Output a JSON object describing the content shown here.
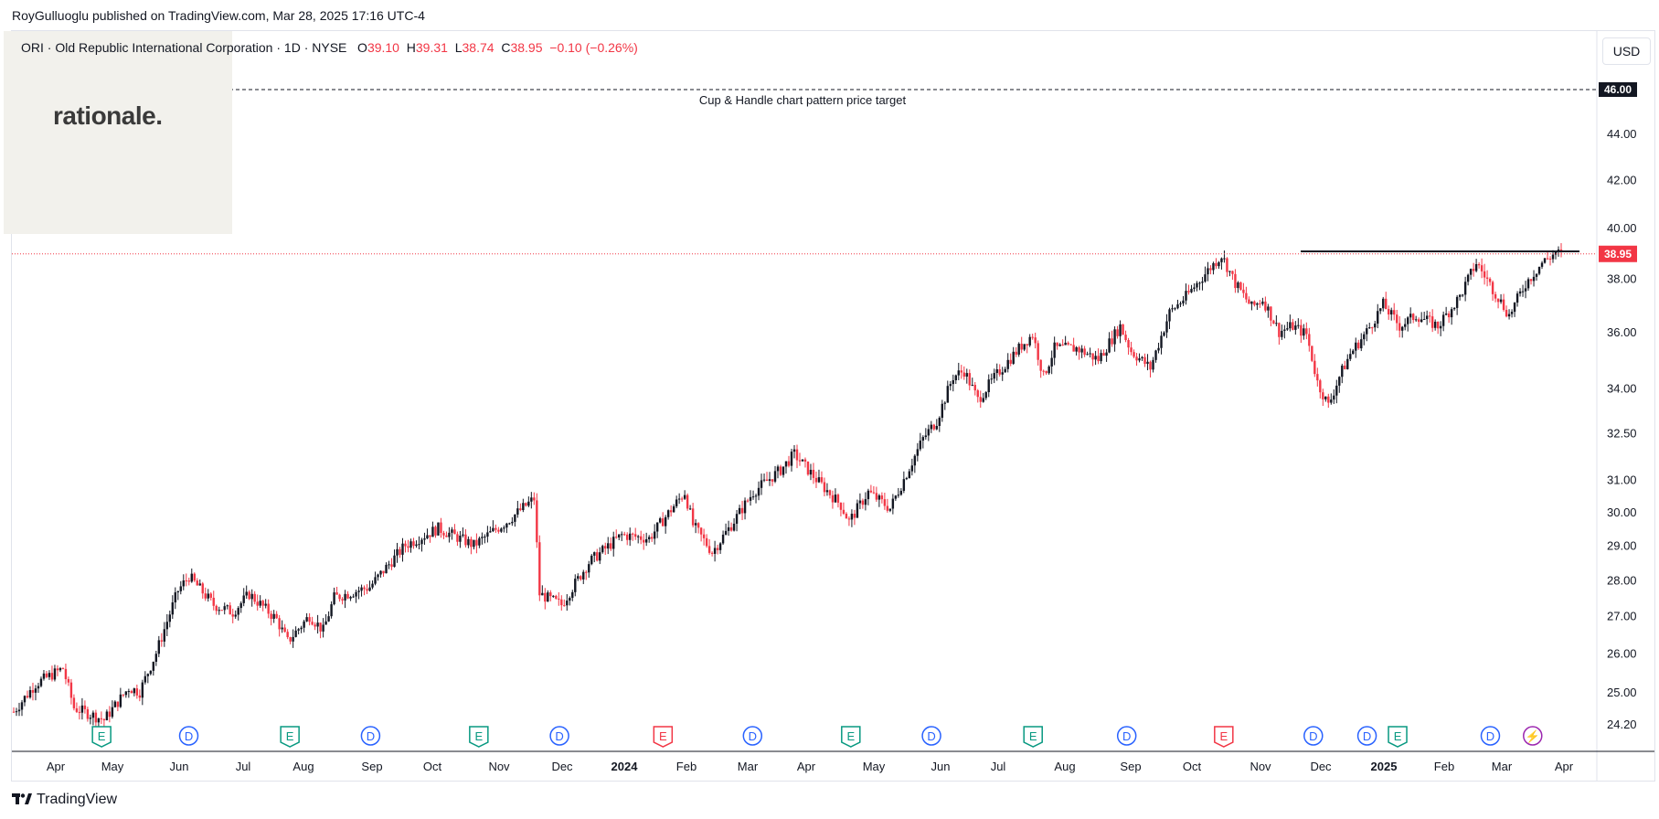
{
  "header": {
    "published": "RoyGulluoglu published on TradingView.com, Mar 28, 2025 17:16 UTC-4"
  },
  "watermark": "rationale.",
  "legend": {
    "symbol": "ORI · Old Republic International Corporation · 1D · NYSE",
    "o_label": "O",
    "o_value": "39.10",
    "h_label": "H",
    "h_value": "39.31",
    "l_label": "L",
    "l_value": "38.74",
    "c_label": "C",
    "c_value": "38.95",
    "change": "−0.10 (−0.26%)"
  },
  "currency": "USD",
  "footer": {
    "brand": "TradingView",
    "icon": "tradingview-logo-icon"
  },
  "colors": {
    "up": "#131722",
    "down": "#f23645",
    "grid": "#e0e3eb",
    "earnings_green": "#089981",
    "earnings_red": "#f23645",
    "dividend": "#2962ff",
    "event_purple": "#9c27b0"
  },
  "chart_data": {
    "type": "candlestick",
    "scale": "log",
    "ylim": [
      23.5,
      47.5
    ],
    "y_ticks": [
      "46.00",
      "44.00",
      "42.00",
      "40.00",
      "38.00",
      "36.00",
      "34.00",
      "32.50",
      "31.00",
      "30.00",
      "29.00",
      "28.00",
      "27.00",
      "26.00",
      "25.00",
      "24.20"
    ],
    "x_ticks": [
      "Apr",
      "May",
      "Jun",
      "Jul",
      "Aug",
      "Sep",
      "Oct",
      "Nov",
      "Dec",
      "2024",
      "Feb",
      "Mar",
      "Apr",
      "May",
      "Jun",
      "Jul",
      "Aug",
      "Sep",
      "Oct",
      "Nov",
      "Dec",
      "2025",
      "Feb",
      "Mar",
      "Apr"
    ],
    "x_ticks_bold": [
      "2024",
      "2025"
    ],
    "last_price": "38.95",
    "target_price": "46.00",
    "target_label": "Cup & Handle chart pattern price target",
    "resistance_level": 39.05,
    "price_path": [
      [
        0,
        24.5
      ],
      [
        8,
        25.2
      ],
      [
        18,
        25.6
      ],
      [
        22,
        24.6
      ],
      [
        33,
        24.3
      ],
      [
        42,
        25.1
      ],
      [
        46,
        25.0
      ],
      [
        52,
        26.0
      ],
      [
        60,
        27.7
      ],
      [
        64,
        28.1
      ],
      [
        73,
        27.3
      ],
      [
        80,
        27.1
      ],
      [
        86,
        27.6
      ],
      [
        96,
        26.9
      ],
      [
        100,
        26.3
      ],
      [
        108,
        27.0
      ],
      [
        113,
        26.6
      ],
      [
        117,
        27.5
      ],
      [
        130,
        27.8
      ],
      [
        143,
        29.0
      ],
      [
        155,
        29.5
      ],
      [
        168,
        29.0
      ],
      [
        180,
        29.7
      ],
      [
        190,
        30.4
      ],
      [
        192,
        27.6
      ],
      [
        200,
        27.3
      ],
      [
        210,
        28.5
      ],
      [
        222,
        29.3
      ],
      [
        232,
        29.2
      ],
      [
        245,
        30.6
      ],
      [
        248,
        29.6
      ],
      [
        255,
        28.8
      ],
      [
        262,
        29.6
      ],
      [
        270,
        30.6
      ],
      [
        280,
        31.3
      ],
      [
        285,
        31.8
      ],
      [
        293,
        31.0
      ],
      [
        302,
        30.2
      ],
      [
        305,
        29.7
      ],
      [
        312,
        30.6
      ],
      [
        320,
        30.1
      ],
      [
        325,
        31.0
      ],
      [
        332,
        32.3
      ],
      [
        337,
        32.9
      ],
      [
        343,
        34.4
      ],
      [
        347,
        34.6
      ],
      [
        352,
        33.6
      ],
      [
        360,
        34.6
      ],
      [
        368,
        35.5
      ],
      [
        372,
        35.9
      ],
      [
        376,
        34.4
      ],
      [
        380,
        35.4
      ],
      [
        388,
        35.4
      ],
      [
        396,
        35.0
      ],
      [
        404,
        36.2
      ],
      [
        408,
        35.3
      ],
      [
        415,
        34.7
      ],
      [
        422,
        36.7
      ],
      [
        428,
        37.3
      ],
      [
        436,
        38.3
      ],
      [
        441,
        38.9
      ],
      [
        446,
        37.8
      ],
      [
        452,
        36.9
      ],
      [
        456,
        37.2
      ],
      [
        462,
        36.0
      ],
      [
        467,
        36.2
      ],
      [
        472,
        35.9
      ],
      [
        476,
        34.2
      ],
      [
        480,
        33.4
      ],
      [
        484,
        34.4
      ],
      [
        488,
        35.2
      ],
      [
        494,
        36.0
      ],
      [
        500,
        37.0
      ],
      [
        506,
        36.2
      ],
      [
        512,
        36.6
      ],
      [
        520,
        36.2
      ],
      [
        528,
        37.3
      ],
      [
        534,
        38.6
      ],
      [
        540,
        37.6
      ],
      [
        546,
        36.6
      ],
      [
        552,
        37.8
      ],
      [
        558,
        38.6
      ],
      [
        563,
        39.0
      ],
      [
        565,
        38.95
      ]
    ],
    "events": [
      {
        "x_frac": 0.0566,
        "type": "E"
      },
      {
        "x_frac": 0.1116,
        "type": "D"
      },
      {
        "x_frac": 0.1754,
        "type": "E"
      },
      {
        "x_frac": 0.2263,
        "type": "D"
      },
      {
        "x_frac": 0.2946,
        "type": "E"
      },
      {
        "x_frac": 0.3455,
        "type": "D"
      },
      {
        "x_frac": 0.4108,
        "type": "E-red"
      },
      {
        "x_frac": 0.4673,
        "type": "D"
      },
      {
        "x_frac": 0.5293,
        "type": "E"
      },
      {
        "x_frac": 0.5802,
        "type": "D"
      },
      {
        "x_frac": 0.6443,
        "type": "E"
      },
      {
        "x_frac": 0.7034,
        "type": "D"
      },
      {
        "x_frac": 0.7646,
        "type": "E-red"
      },
      {
        "x_frac": 0.8211,
        "type": "D"
      },
      {
        "x_frac": 0.855,
        "type": "D"
      },
      {
        "x_frac": 0.8743,
        "type": "E"
      },
      {
        "x_frac": 0.9328,
        "type": "D"
      },
      {
        "x_frac": 0.9595,
        "type": "flash"
      }
    ]
  }
}
